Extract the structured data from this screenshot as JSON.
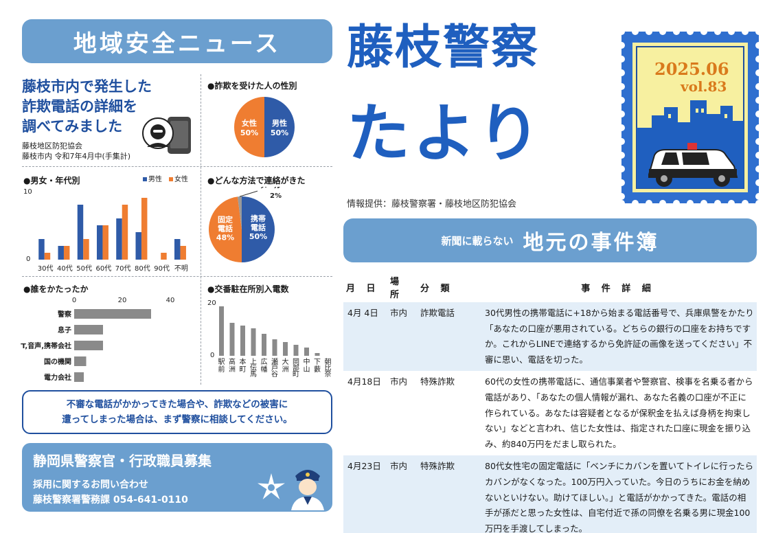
{
  "left": {
    "banner": "地域安全ニュース",
    "headline_lines": [
      "藤枝市内で発生した",
      "詐欺電話の詳細を",
      "調べてみました"
    ],
    "source_lines": [
      "藤枝地区防犯協会",
      "藤枝市内 令和7年4月中(手集計)"
    ]
  },
  "sections": {
    "gender": "●詐欺を受けた人の性別",
    "age": "●男女・年代別",
    "method": "●どんな方法で連絡がきた",
    "who": "●誰をかたったか",
    "police_box": "●交番駐在所別入電数"
  },
  "chart_data": [
    {
      "type": "pie",
      "title": "●詐欺を受けた人の性別",
      "slices": [
        {
          "label": "男性",
          "value": 50,
          "text": "50%",
          "color": "#2f5ba8"
        },
        {
          "label": "女性",
          "value": 50,
          "text": "50%",
          "color": "#ef7d31"
        }
      ]
    },
    {
      "type": "bar",
      "title": "●男女・年代別",
      "categories": [
        "30代",
        "40代",
        "50代",
        "60代",
        "70代",
        "80代",
        "90代",
        "不明"
      ],
      "ylim": [
        0,
        10
      ],
      "yticks": [
        "10",
        "0"
      ],
      "legend": "top-right",
      "series": [
        {
          "name": "男性",
          "color": "#2f5ba8",
          "values": [
            3,
            2,
            8,
            5,
            6,
            4,
            0,
            3
          ]
        },
        {
          "name": "女性",
          "color": "#ef7d31",
          "values": [
            1,
            2,
            3,
            5,
            8,
            9,
            1,
            2
          ]
        }
      ]
    },
    {
      "type": "pie",
      "title": "●どんな方法で連絡がきた",
      "slices": [
        {
          "label": "携帯電話",
          "label_lines": [
            "携帯",
            "電話"
          ],
          "value": 50,
          "text": "50%",
          "color": "#2f5ba8"
        },
        {
          "label": "固定電話",
          "label_lines": [
            "固定",
            "電話"
          ],
          "value": 48,
          "text": "48%",
          "color": "#ef7d31"
        },
        {
          "label": "メール",
          "label_lines": [
            "メール"
          ],
          "value": 2,
          "text": "2%",
          "color": "#9a9a9a"
        }
      ]
    },
    {
      "type": "bar",
      "orientation": "horizontal",
      "title": "●誰をかたったか",
      "categories": [
        "警察",
        "息子",
        "NTT,音声,携帯会社",
        "国の機関",
        "電力会社"
      ],
      "values": [
        32,
        12,
        12,
        5,
        4
      ],
      "xlim": [
        0,
        40
      ],
      "xticks": [
        "0",
        "20",
        "40"
      ],
      "color": "#8a8a8a"
    },
    {
      "type": "bar",
      "title": "●交番駐在所別入電数",
      "categories": [
        "駅前",
        "高洲",
        "本町",
        "上伝馬",
        "広幡",
        "瀬戸谷",
        "大洲",
        "岡部町",
        "中山",
        "下藪",
        "朝比奈"
      ],
      "values": [
        18,
        12,
        11,
        10,
        8,
        6,
        5,
        4,
        3,
        1,
        0
      ],
      "ylim": [
        0,
        20
      ],
      "yticks": [
        "20",
        "0"
      ],
      "color": "#8a8a8a"
    }
  ],
  "notice_lines": [
    "不審な電話がかかってきた場合や、詐欺などの被害に",
    "遭ってしまった場合は、まず警察に相談してください。"
  ],
  "recruit": {
    "title": "静岡県警察官・行政職員募集",
    "inquiry": "採用に関するお問い合わせ",
    "contact": "藤枝警察署警務課 054-641-0110"
  },
  "masthead": {
    "line1": "藤枝警察",
    "line2": "たより"
  },
  "issue": {
    "date": "2025.06",
    "vol": "vol.83"
  },
  "provider": "情報提供：藤枝警察署・藤枝地区防犯協会",
  "cases_banner": {
    "small": "新聞に載らない",
    "large": "地元の事件簿"
  },
  "cases": {
    "headers": [
      "月 日",
      "場 所",
      "分 類",
      "事 件 詳 細"
    ],
    "rows": [
      {
        "date": "4月 4日",
        "place": "市内",
        "category": "詐欺電話",
        "detail": "30代男性の携帯電話に+18から始まる電話番号で、兵庫県警をかたり「あなたの口座が悪用されている。どちらの銀行の口座をお持ちですか。これからLINEで連絡するから免許証の画像を送ってください」不審に思い、電話を切った。"
      },
      {
        "date": "4月18日",
        "place": "市内",
        "category": "特殊詐欺",
        "detail": "60代の女性の携帯電話に、通信事業者や警察官、検事を名乗る者から電話があり、「あなたの個人情報が漏れ、あなた名義の口座が不正に作られている。あなたは容疑者となるが保釈金を払えば身柄を拘束しない」などと言われ、信じた女性は、指定された口座に現金を振り込み、約840万円をだまし取られた。"
      },
      {
        "date": "4月23日",
        "place": "市内",
        "category": "特殊詐欺",
        "detail": "80代女性宅の固定電話に「ベンチにカバンを置いてトイレに行ったらカバンがなくなった。100万円入っていた。今日のうちにお金を納めないといけない。助けてほしい。」と電話がかかってきた。電話の相手が孫だと思った女性は、自宅付近で孫の同僚を名乗る男に現金100万円を手渡してしまった。"
      }
    ]
  }
}
